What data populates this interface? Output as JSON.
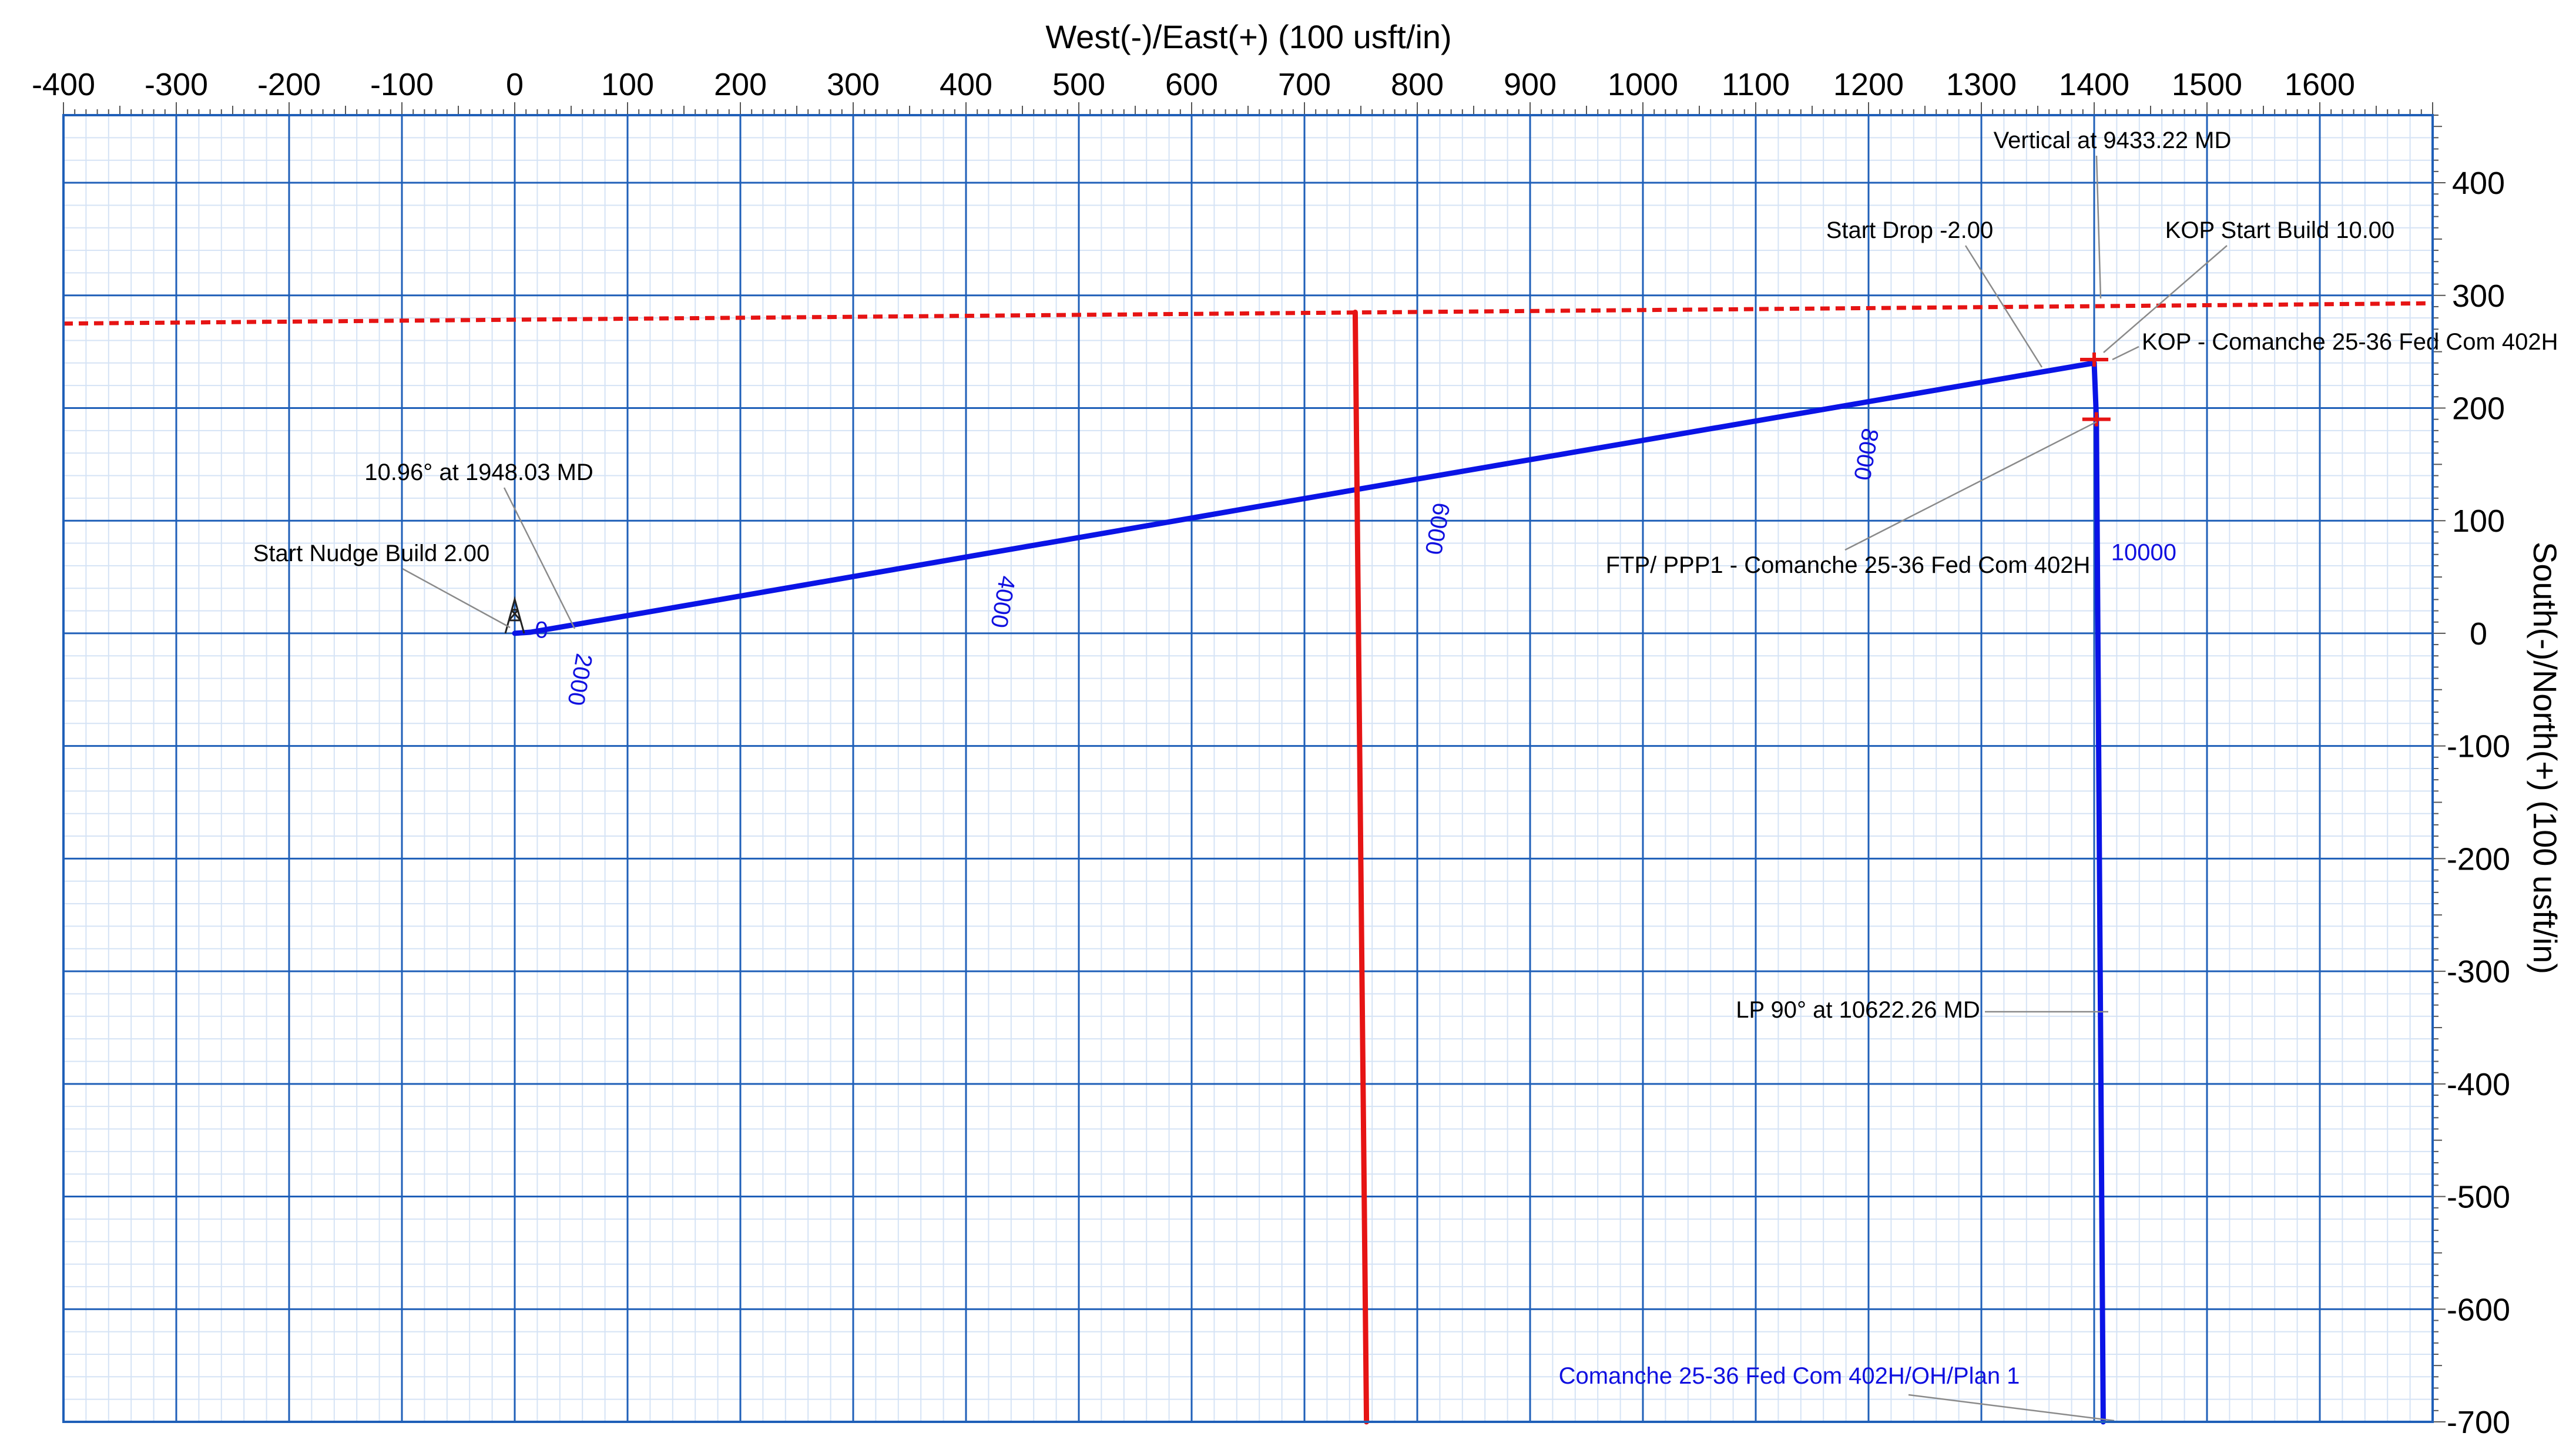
{
  "chart_data": {
    "type": "line",
    "title": "",
    "xlabel": "West(-)/East(+) (100 usft/in)",
    "ylabel": "South(-)/North(+) (100 usft/in)",
    "xlim": [
      -400,
      1700
    ],
    "ylim": [
      -700,
      460
    ],
    "x_ticks": [
      "-400",
      "-300",
      "-200",
      "-100",
      "0",
      "100",
      "200",
      "300",
      "400",
      "500",
      "600",
      "700",
      "800",
      "900",
      "1000",
      "1100",
      "1200",
      "1300",
      "1400",
      "1500",
      "1600"
    ],
    "y_ticks": [
      "400",
      "300",
      "200",
      "100",
      "0",
      "-100",
      "-200",
      "-300",
      "-400",
      "-500",
      "-600",
      "-700"
    ],
    "grid": true,
    "series": [
      {
        "name": "Comanche 25-36 Fed Com 402H/OH/Plan 1",
        "color": "#0a14e6",
        "points": [
          [
            0,
            0
          ],
          [
            14,
            1
          ],
          [
            55,
            8
          ],
          [
            800,
            137
          ],
          [
            1400,
            240
          ],
          [
            1402,
            190
          ],
          [
            1408,
            -700
          ]
        ]
      },
      {
        "color": "#e61414",
        "style": "solid",
        "points": [
          [
            745,
            285
          ],
          [
            755,
            -700
          ]
        ]
      },
      {
        "color": "#e61414",
        "style": "dashed",
        "points": [
          [
            -400,
            275
          ],
          [
            1700,
            293
          ]
        ]
      }
    ],
    "md_labels": [
      {
        "text": "0",
        "x": 18,
        "y": -4
      },
      {
        "text": "2000",
        "x": 55,
        "y": -17
      },
      {
        "text": "4000",
        "x": 430,
        "y": 52
      },
      {
        "text": "6000",
        "x": 815,
        "y": 117
      },
      {
        "text": "8000",
        "x": 1195,
        "y": 183
      },
      {
        "text": "10000",
        "x": 1415,
        "y": 65
      }
    ],
    "annotations": [
      "Vertical at 9433.22 MD",
      "Start Drop -2.00",
      "KOP Start Build 10.00",
      "KOP - Comanche 25-36 Fed Com 402H",
      "10.96° at 1948.03 MD",
      "Start Nudge Build 2.00",
      "FTP/ PPP1 - Comanche 25-36 Fed Com 402H",
      "LP 90° at 10622.26 MD",
      "Comanche 25-36 Fed Com 402H/OH/Plan 1"
    ],
    "colors": {
      "major_grid": "#1f5fb8",
      "minor_grid": "#d5e3f5",
      "plan": "#0a14e6",
      "lease_line": "#e61414"
    }
  }
}
